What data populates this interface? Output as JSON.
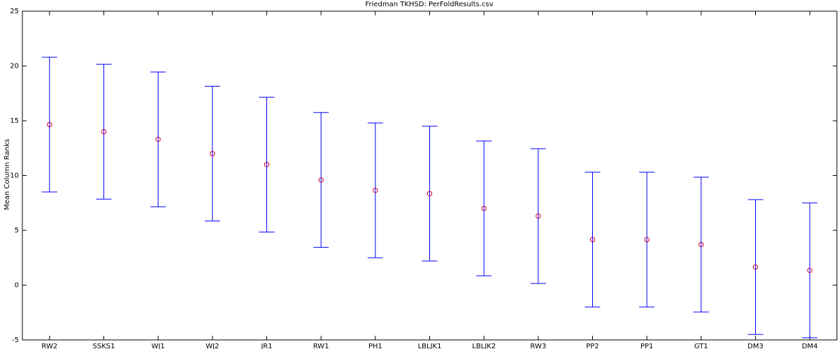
{
  "chart_data": {
    "type": "errorbar",
    "title": "Friedman TKHSD: PerFoldResults.csv",
    "y_label": "Mean Column Ranks",
    "categories": [
      "RW2",
      "SSKS1",
      "WJ1",
      "WJ2",
      "JR1",
      "RW1",
      "PH1",
      "LBLJK1",
      "LBLJK2",
      "RW3",
      "PP2",
      "PP1",
      "GT1",
      "DM3",
      "DM4"
    ],
    "values": [
      14.65,
      14.0,
      13.3,
      12.0,
      11.0,
      9.6,
      8.65,
      8.35,
      7.0,
      6.3,
      4.15,
      4.15,
      3.7,
      1.65,
      1.35
    ],
    "errors": [
      6.15,
      6.15,
      6.15,
      6.15,
      6.15,
      6.15,
      6.15,
      6.15,
      6.15,
      6.15,
      6.15,
      6.15,
      6.15,
      6.15,
      6.15
    ],
    "color": "#0000ff",
    "marker_color": "#cc0033",
    "ylim": [
      -5,
      25
    ],
    "yticks": [
      -5,
      0,
      5,
      10,
      15,
      20,
      25
    ]
  }
}
